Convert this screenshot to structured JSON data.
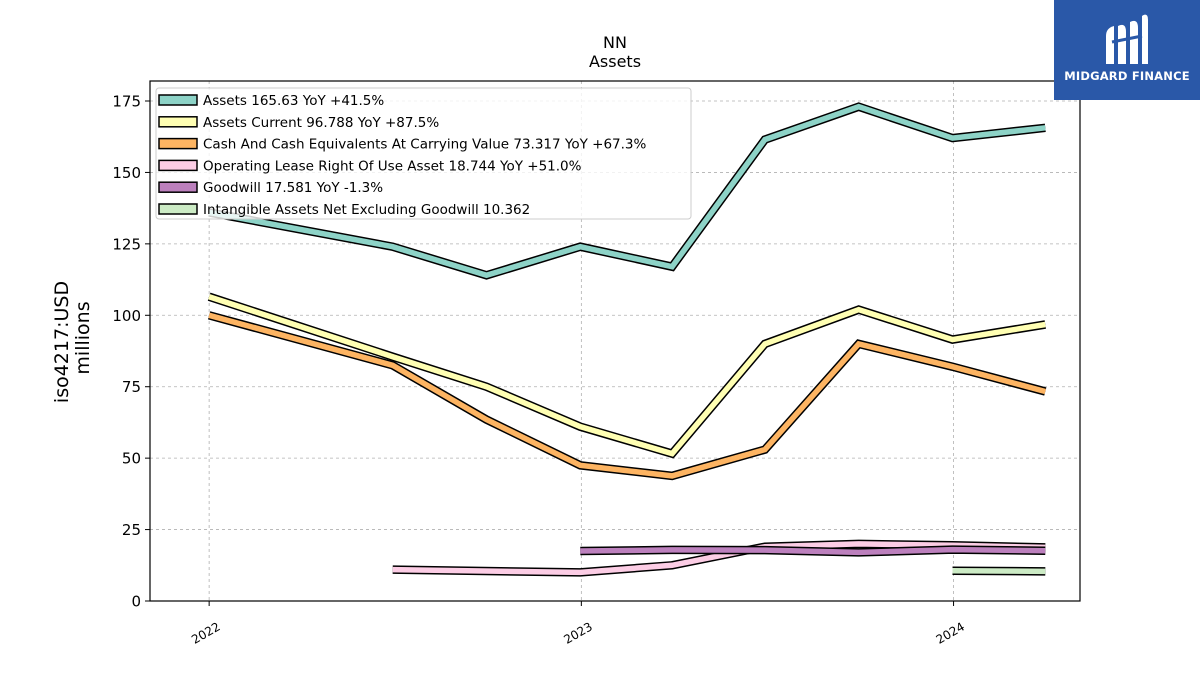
{
  "brand": {
    "name": "MIDGARD FINANCE",
    "bg_color": "#2a58a8"
  },
  "chart_data": {
    "type": "line",
    "title": "NN",
    "subtitle": "Assets",
    "ylabel": "iso4217:USD",
    "ylabel2": "millions",
    "ylim": [
      0,
      182
    ],
    "yticks": [
      0,
      25,
      50,
      75,
      100,
      125,
      150,
      175
    ],
    "xlim": [
      "2021-11-04",
      "2024-05-04"
    ],
    "xticks": [
      {
        "date": "2022-01-01",
        "label": "2022"
      },
      {
        "date": "2023-01-01",
        "label": "2023"
      },
      {
        "date": "2024-01-01",
        "label": "2024"
      }
    ],
    "grid": true,
    "legend_position": "upper left",
    "series": [
      {
        "name": "Assets",
        "legend": "Assets  165.63 YoY +41.5%",
        "color": "#8dd3c7",
        "points": [
          [
            "2022-01-01",
            136.0
          ],
          [
            "2022-06-30",
            124.0
          ],
          [
            "2022-09-30",
            114.0
          ],
          [
            "2022-12-31",
            124.0
          ],
          [
            "2023-03-31",
            117.0
          ],
          [
            "2023-06-30",
            161.5
          ],
          [
            "2023-09-30",
            173.0
          ],
          [
            "2023-12-31",
            162.0
          ],
          [
            "2024-03-31",
            165.63
          ]
        ]
      },
      {
        "name": "Assets Current",
        "legend": "Assets Current  96.788 YoY +87.5%",
        "color": "#ffffb3",
        "points": [
          [
            "2022-01-01",
            106.5
          ],
          [
            "2022-06-30",
            85.5
          ],
          [
            "2022-09-30",
            75.0
          ],
          [
            "2022-12-31",
            61.0
          ],
          [
            "2023-03-31",
            51.6
          ],
          [
            "2023-06-30",
            90.0
          ],
          [
            "2023-09-30",
            102.0
          ],
          [
            "2023-12-31",
            91.5
          ],
          [
            "2024-03-31",
            96.788
          ]
        ]
      },
      {
        "name": "Cash And Cash Equivalents At Carrying Value",
        "legend": "Cash And Cash Equivalents At Carrying Value  73.317 YoY +67.3%",
        "color": "#fdb462",
        "points": [
          [
            "2022-01-01",
            100.0
          ],
          [
            "2022-06-30",
            82.5
          ],
          [
            "2022-09-30",
            63.5
          ],
          [
            "2022-12-31",
            47.5
          ],
          [
            "2023-03-31",
            43.8
          ],
          [
            "2023-06-30",
            53.0
          ],
          [
            "2023-09-30",
            90.0
          ],
          [
            "2023-12-31",
            82.0
          ],
          [
            "2024-03-31",
            73.317
          ]
        ]
      },
      {
        "name": "Operating Lease Right Of Use Asset",
        "legend": "Operating Lease Right Of Use Asset  18.744 YoY +51.0%",
        "color": "#fccde5",
        "points": [
          [
            "2022-06-30",
            11.0
          ],
          [
            "2022-12-31",
            10.0
          ],
          [
            "2023-03-31",
            12.5
          ],
          [
            "2023-06-30",
            19.0
          ],
          [
            "2023-09-30",
            20.0
          ],
          [
            "2023-12-31",
            19.5
          ],
          [
            "2024-03-31",
            18.744
          ]
        ]
      },
      {
        "name": "Goodwill",
        "legend": "Goodwill  17.581 YoY -1.3%",
        "color": "#bc80bd",
        "points": [
          [
            "2022-12-31",
            17.5
          ],
          [
            "2023-03-31",
            17.9
          ],
          [
            "2023-06-30",
            17.8
          ],
          [
            "2023-09-30",
            17.0
          ],
          [
            "2023-12-31",
            18.0
          ],
          [
            "2024-03-31",
            17.581
          ]
        ]
      },
      {
        "name": "Intangible Assets Net Excluding Goodwill",
        "legend": "Intangible Assets Net Excluding Goodwill  10.362",
        "color": "#ccebc5",
        "points": [
          [
            "2023-12-31",
            10.6
          ],
          [
            "2024-03-31",
            10.362
          ]
        ]
      }
    ]
  }
}
